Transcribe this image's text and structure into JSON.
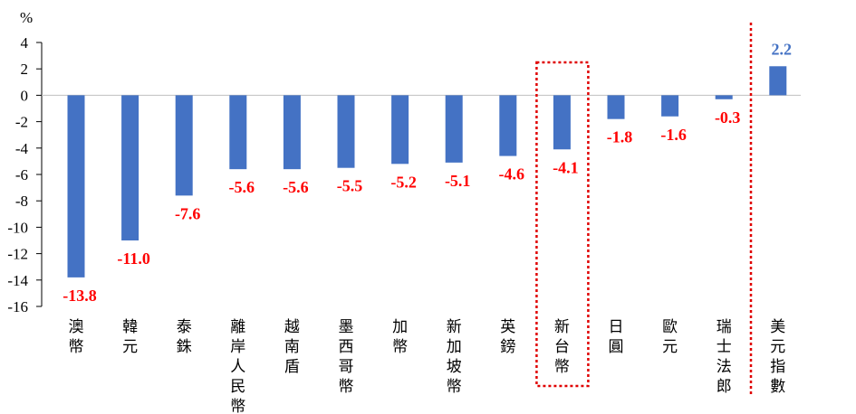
{
  "chart_data": {
    "type": "bar",
    "unit_label": "%",
    "categories": [
      "澳幣",
      "韓元",
      "泰銖",
      "離岸人民幣",
      "越南盾",
      "墨西哥幣",
      "加幣",
      "新加坡幣",
      "英鎊",
      "新台幣",
      "日圓",
      "歐元",
      "瑞士法郎",
      "美元指數"
    ],
    "values": [
      -13.8,
      -11.0,
      -7.6,
      -5.6,
      -5.6,
      -5.5,
      -5.2,
      -5.1,
      -4.6,
      -4.1,
      -1.8,
      -1.6,
      -0.3,
      2.2
    ],
    "value_labels": [
      "-13.8",
      "-11.0",
      "-7.6",
      "-5.6",
      "-5.6",
      "-5.5",
      "-5.2",
      "-5.1",
      "-4.6",
      "-4.1",
      "-1.8",
      "-1.6",
      "-0.3",
      "2.2"
    ],
    "ylim": [
      -16,
      4
    ],
    "yticks": [
      4,
      2,
      0,
      -2,
      -4,
      -6,
      -8,
      -10,
      -12,
      -14,
      -16
    ],
    "highlight_box_category": "新台幣",
    "separator_before_category": "美元指數",
    "colors": {
      "bar": "#4472C4",
      "negative_label": "#FF0000",
      "positive_label": "#4472C4",
      "highlight": "#E00000",
      "zero_line": "#BFBFBF"
    },
    "grid": false
  }
}
